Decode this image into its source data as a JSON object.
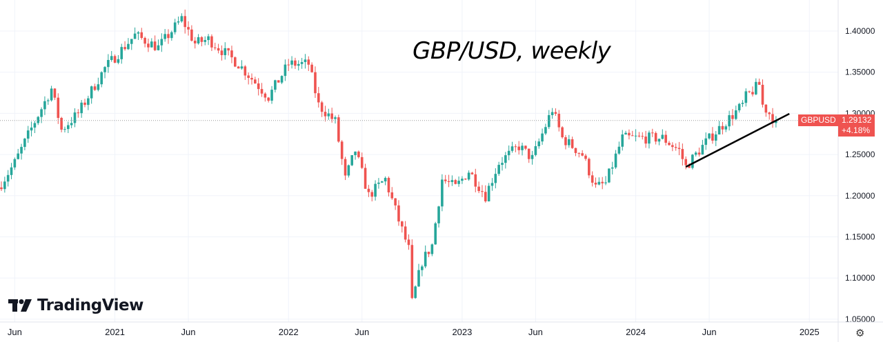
{
  "chart_data": {
    "type": "candlestick",
    "title": "GBP/USD, weekly",
    "symbol": "GBPUSD",
    "last_price": "1.29132",
    "change": "+4.18%",
    "last_value": 1.29132,
    "ylim": [
      1.05,
      1.42
    ],
    "y_ticks": [
      "1.40000",
      "1.35000",
      "1.30000",
      "1.25000",
      "1.20000",
      "1.15000",
      "1.10000",
      "1.05000"
    ],
    "y_tick_values": [
      1.4,
      1.35,
      1.3,
      1.25,
      1.2,
      1.15,
      1.1,
      1.05
    ],
    "x_ticks": [
      "Jun",
      "2021",
      "Jun",
      "2022",
      "Jun",
      "2023",
      "Jun",
      "2024",
      "Jun",
      "2025"
    ],
    "x_tick_weeks": [
      4,
      34,
      56,
      86,
      108,
      138,
      160,
      190,
      212,
      242
    ],
    "start_week": "2020-05",
    "close_path_weeks_price": [
      [
        0,
        1.215
      ],
      [
        4,
        1.24
      ],
      [
        10,
        1.29
      ],
      [
        15,
        1.33
      ],
      [
        18,
        1.28
      ],
      [
        23,
        1.3
      ],
      [
        31,
        1.355
      ],
      [
        40,
        1.395
      ],
      [
        47,
        1.38
      ],
      [
        54,
        1.415
      ],
      [
        58,
        1.385
      ],
      [
        62,
        1.39
      ],
      [
        71,
        1.36
      ],
      [
        80,
        1.32
      ],
      [
        86,
        1.36
      ],
      [
        92,
        1.36
      ],
      [
        95,
        1.31
      ],
      [
        100,
        1.29
      ],
      [
        103,
        1.22
      ],
      [
        106,
        1.255
      ],
      [
        110,
        1.2
      ],
      [
        115,
        1.22
      ],
      [
        119,
        1.17
      ],
      [
        122,
        1.135
      ],
      [
        123,
        1.07
      ],
      [
        126,
        1.12
      ],
      [
        129,
        1.14
      ],
      [
        132,
        1.22
      ],
      [
        136,
        1.21
      ],
      [
        140,
        1.23
      ],
      [
        145,
        1.2
      ],
      [
        149,
        1.24
      ],
      [
        155,
        1.26
      ],
      [
        159,
        1.245
      ],
      [
        165,
        1.305
      ],
      [
        168,
        1.27
      ],
      [
        174,
        1.25
      ],
      [
        178,
        1.21
      ],
      [
        181,
        1.215
      ],
      [
        186,
        1.27
      ],
      [
        192,
        1.27
      ],
      [
        198,
        1.27
      ],
      [
        203,
        1.255
      ],
      [
        205,
        1.235
      ],
      [
        211,
        1.265
      ],
      [
        217,
        1.29
      ],
      [
        222,
        1.31
      ],
      [
        223,
        1.32
      ],
      [
        227,
        1.335
      ],
      [
        228,
        1.31
      ],
      [
        232,
        1.29
      ]
    ],
    "trendline": {
      "from": [
        205,
        1.235
      ],
      "to": [
        236,
        1.2995
      ]
    },
    "colors": {
      "up": "#26a69a",
      "down": "#ef5350",
      "grid": "#f0f3fa",
      "trend": "#000000"
    }
  },
  "branding": {
    "logo_text": "TradingView"
  },
  "settings_icon": "gear-icon"
}
